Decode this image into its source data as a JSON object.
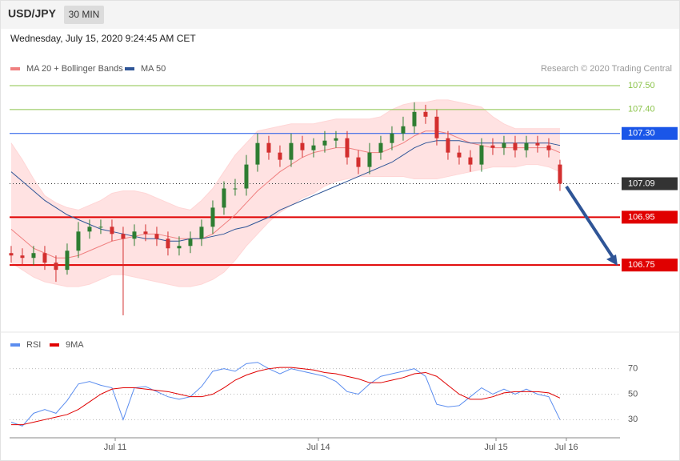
{
  "header": {
    "symbol": "USD/JPY",
    "interval": "30 MIN",
    "timestamp": "Wednesday, July 15, 2020 9:24:45 AM CET"
  },
  "chart_data": [
    {
      "type": "candlestick",
      "credit": "Research © 2020 Trading Central",
      "up_color": "#2e7d32",
      "down_color": "#d32f2f",
      "xlim": [
        -0.14,
        54.36
      ],
      "ylim": [
        106.473,
        107.657
      ],
      "open": [
        106.8,
        106.79,
        106.78,
        106.8,
        106.76,
        106.73,
        106.81,
        106.89,
        106.91,
        106.91,
        106.88,
        106.86,
        106.89,
        106.88,
        106.86,
        106.82,
        106.83,
        106.86,
        106.91,
        106.99,
        107.07,
        107.07,
        107.17,
        107.26,
        107.22,
        107.19,
        107.26,
        107.23,
        107.25,
        107.27,
        107.28,
        107.2,
        107.16,
        107.22,
        107.26,
        107.3,
        107.33,
        107.39,
        107.37,
        107.28,
        107.22,
        107.2,
        107.17,
        107.25,
        107.24,
        107.26,
        107.23,
        107.26,
        107.25,
        107.17
      ],
      "high": [
        106.83,
        106.82,
        106.83,
        106.83,
        106.79,
        106.84,
        106.93,
        106.94,
        106.94,
        106.94,
        106.91,
        106.92,
        106.92,
        106.91,
        106.89,
        106.87,
        106.89,
        106.94,
        107.02,
        107.1,
        107.11,
        107.21,
        107.3,
        107.29,
        107.25,
        107.3,
        107.29,
        107.28,
        107.31,
        107.31,
        107.31,
        107.23,
        107.26,
        107.29,
        107.33,
        107.37,
        107.43,
        107.42,
        107.4,
        107.31,
        107.25,
        107.23,
        107.28,
        107.28,
        107.29,
        107.29,
        107.29,
        107.29,
        107.28,
        107.19
      ],
      "low": [
        106.76,
        106.75,
        106.75,
        106.73,
        106.68,
        106.71,
        106.78,
        106.86,
        106.88,
        106.85,
        106.54,
        106.83,
        106.85,
        106.83,
        106.79,
        106.79,
        106.8,
        106.83,
        106.88,
        106.96,
        107.04,
        107.04,
        107.14,
        107.19,
        107.16,
        107.16,
        107.2,
        107.2,
        107.22,
        107.24,
        107.17,
        107.13,
        107.13,
        107.19,
        107.23,
        107.27,
        107.3,
        107.34,
        107.25,
        107.19,
        107.17,
        107.14,
        107.14,
        107.21,
        107.21,
        107.2,
        107.2,
        107.22,
        107.2,
        107.06
      ],
      "close": [
        106.79,
        106.78,
        106.8,
        106.76,
        106.73,
        106.81,
        106.89,
        106.91,
        106.91,
        106.88,
        106.86,
        106.89,
        106.88,
        106.86,
        106.82,
        106.83,
        106.86,
        106.91,
        106.99,
        107.07,
        107.07,
        107.17,
        107.26,
        107.22,
        107.19,
        107.26,
        107.23,
        107.25,
        107.27,
        107.28,
        107.2,
        107.16,
        107.22,
        107.26,
        107.3,
        107.33,
        107.39,
        107.37,
        107.28,
        107.22,
        107.2,
        107.17,
        107.25,
        107.24,
        107.26,
        107.23,
        107.26,
        107.25,
        107.23,
        107.09
      ],
      "series": [
        {
          "name": "MA 20 + Bollinger Bands",
          "color": "#f08080",
          "band_color": "#ffd6d6",
          "values": [
            106.9,
            106.86,
            106.82,
            106.8,
            106.78,
            106.78,
            106.79,
            106.81,
            106.83,
            106.85,
            106.86,
            106.87,
            106.88,
            106.88,
            106.87,
            106.86,
            106.86,
            106.86,
            106.88,
            106.92,
            106.96,
            107.01,
            107.06,
            107.1,
            107.14,
            107.17,
            107.2,
            107.22,
            107.23,
            107.24,
            107.24,
            107.23,
            107.22,
            107.22,
            107.24,
            107.26,
            107.29,
            107.31,
            107.31,
            107.3,
            107.28,
            107.26,
            107.25,
            107.24,
            107.24,
            107.24,
            107.24,
            107.24,
            107.24,
            107.22
          ],
          "upper": [
            107.26,
            107.19,
            107.11,
            107.04,
            107.01,
            106.99,
            106.98,
            107.0,
            107.02,
            107.05,
            107.06,
            107.06,
            107.05,
            107.03,
            107.01,
            106.99,
            106.98,
            107.02,
            107.07,
            107.14,
            107.21,
            107.26,
            107.31,
            107.32,
            107.33,
            107.34,
            107.34,
            107.34,
            107.35,
            107.36,
            107.36,
            107.36,
            107.36,
            107.37,
            107.4,
            107.42,
            107.43,
            107.43,
            107.44,
            107.44,
            107.43,
            107.42,
            107.41,
            107.37,
            107.34,
            107.32,
            107.32,
            107.32,
            107.32,
            107.32
          ],
          "lower": [
            106.76,
            106.73,
            106.7,
            106.68,
            106.67,
            106.66,
            106.66,
            106.67,
            106.69,
            106.71,
            106.71,
            106.7,
            106.69,
            106.68,
            106.67,
            106.66,
            106.66,
            106.67,
            106.69,
            106.72,
            106.77,
            106.83,
            106.88,
            106.93,
            106.97,
            107.0,
            107.03,
            107.05,
            107.08,
            107.1,
            107.11,
            107.12,
            107.12,
            107.12,
            107.12,
            107.12,
            107.11,
            107.11,
            107.11,
            107.12,
            107.13,
            107.14,
            107.15,
            107.16,
            107.16,
            107.16,
            107.17,
            107.17,
            107.16,
            107.14
          ]
        },
        {
          "name": "MA 50",
          "color": "#2f5597",
          "values": [
            107.14,
            107.1,
            107.06,
            107.02,
            106.99,
            106.96,
            106.94,
            106.92,
            106.9,
            106.89,
            106.88,
            106.87,
            106.86,
            106.86,
            106.85,
            106.85,
            106.86,
            106.86,
            106.87,
            106.88,
            106.9,
            106.91,
            106.93,
            106.95,
            106.98,
            107.0,
            107.02,
            107.04,
            107.06,
            107.08,
            107.1,
            107.12,
            107.14,
            107.16,
            107.18,
            107.21,
            107.24,
            107.26,
            107.27,
            107.27,
            107.27,
            107.26,
            107.26,
            107.26,
            107.26,
            107.26,
            107.26,
            107.26,
            107.26,
            107.25
          ]
        }
      ],
      "levels": [
        {
          "value": 107.5,
          "label": "107.50",
          "color": "#8bc34a",
          "style": "solid",
          "width": 1,
          "box": false
        },
        {
          "value": 107.4,
          "label": "107.40",
          "color": "#8bc34a",
          "style": "solid",
          "width": 1,
          "box": false
        },
        {
          "value": 107.3,
          "label": "107.30",
          "color": "#1a56e8",
          "style": "solid",
          "width": 1,
          "box": true
        },
        {
          "value": 107.09,
          "label": "107.09",
          "color": "#333333",
          "style": "dotted",
          "width": 1,
          "box": true
        },
        {
          "value": 106.95,
          "label": "106.95",
          "color": "#e00000",
          "style": "solid",
          "width": 2,
          "box": true
        },
        {
          "value": 106.75,
          "label": "106.75",
          "color": "#e00000",
          "style": "solid",
          "width": 2,
          "box": true
        }
      ]
    },
    {
      "type": "line",
      "xlim": [
        -0.14,
        54.36
      ],
      "ylim": [
        17,
        83
      ],
      "yticks": [
        30,
        50,
        70
      ],
      "grid": true,
      "xticks": [
        {
          "value": 9.29,
          "label": "Jul 11"
        },
        {
          "value": 27.43,
          "label": "Jul 14"
        },
        {
          "value": 43.29,
          "label": "Jul 15"
        },
        {
          "value": 49.57,
          "label": "Jul 16"
        }
      ],
      "series": [
        {
          "name": "RSI",
          "color": "#5b8def",
          "values": [
            28,
            25,
            35,
            38,
            35,
            45,
            58,
            60,
            57,
            55,
            30,
            55,
            56,
            52,
            48,
            46,
            48,
            56,
            68,
            70,
            68,
            74,
            75,
            70,
            66,
            70,
            68,
            66,
            64,
            60,
            52,
            50,
            58,
            64,
            66,
            68,
            70,
            64,
            42,
            40,
            41,
            48,
            55,
            50,
            54,
            50,
            54,
            50,
            48,
            30
          ]
        },
        {
          "name": "9MA",
          "color": "#e00000",
          "values": [
            26,
            26,
            28,
            30,
            32,
            34,
            38,
            44,
            50,
            54,
            55,
            55,
            54,
            53,
            52,
            50,
            48,
            48,
            50,
            55,
            61,
            65,
            68,
            70,
            71,
            71,
            70,
            69,
            67,
            66,
            64,
            62,
            59,
            59,
            61,
            63,
            66,
            67,
            64,
            57,
            50,
            46,
            46,
            48,
            51,
            52,
            52,
            52,
            51,
            47
          ]
        }
      ]
    }
  ]
}
